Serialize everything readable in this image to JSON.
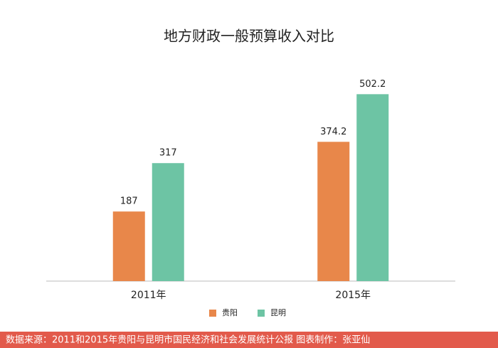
{
  "chart_data": {
    "type": "bar",
    "title": "地方财政一般预算收入对比",
    "categories": [
      "2011年",
      "2015年"
    ],
    "series": [
      {
        "name": "贵阳",
        "color": "#e8874a",
        "values": [
          187,
          374.2
        ]
      },
      {
        "name": "昆明",
        "color": "#6dc4a4",
        "values": [
          317,
          502.2
        ]
      }
    ],
    "footer": "数据来源：2011和2015年贵阳与昆明市国民经济和社会发展统计公报  图表制作：张亚仙"
  }
}
